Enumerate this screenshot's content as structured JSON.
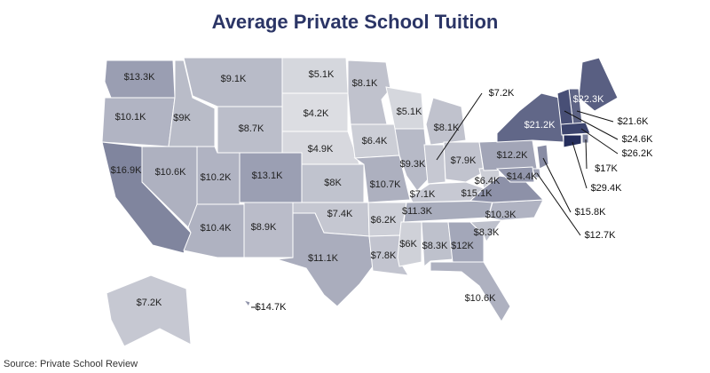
{
  "chart_data": {
    "type": "choropleth",
    "title": "Average Private School Tuition",
    "source": "Source: Private School Review",
    "color_range": [
      "#dcdde2",
      "#252e5c"
    ],
    "border_color": "#ffffff",
    "values": [
      13.3,
      10.1,
      16.9,
      10.6,
      9,
      9.1,
      8.7,
      10.2,
      13.1,
      10.4,
      8.9,
      5.1,
      4.2,
      4.9,
      8,
      7.4,
      11.1,
      8.1,
      6.4,
      10.7,
      6.2,
      7.8,
      5.1,
      9.3,
      8.1,
      7.2,
      7.9,
      7.1,
      11.3,
      6,
      8.3,
      12,
      10.6,
      8.3,
      10.3,
      15.1,
      6.4,
      12.2,
      21.2,
      22.3,
      21.6,
      24.6,
      26.2,
      17,
      29.4,
      15.8,
      12.7,
      14.4,
      7.2,
      14.7
    ],
    "value_labels": [
      "$13.3K",
      "$10.1K",
      "$16.9K",
      "$10.6K",
      "$9K",
      "$9.1K",
      "$8.7K",
      "$10.2K",
      "$13.1K",
      "$10.4K",
      "$8.9K",
      "$5.1K",
      "$4.2K",
      "$4.9K",
      "$8K",
      "$7.4K",
      "$11.1K",
      "$8.1K",
      "$6.4K",
      "$10.7K",
      "$6.2K",
      "$7.8K",
      "$5.1K",
      "$9.3K",
      "$8.1K",
      "$7.2K",
      "$7.9K",
      "$7.1K",
      "$11.3K",
      "$6K",
      "$8.3K",
      "$12K",
      "$10.6K",
      "$8.3K",
      "$10.3K",
      "$15.1K",
      "$6.4K",
      "$12.2K",
      "$21.2K",
      "$22.3K",
      "$21.6K",
      "$24.6K",
      "$26.2K",
      "$17K",
      "$29.4K",
      "$15.8K",
      "$12.7K",
      "$14.4K",
      "$7.2K",
      "$14.7K"
    ]
  }
}
